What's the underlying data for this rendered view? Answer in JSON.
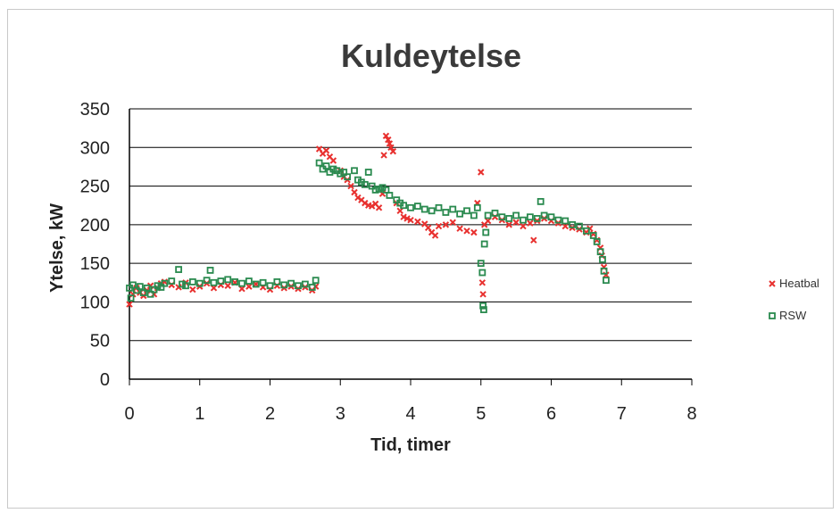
{
  "chart_data": {
    "type": "scatter",
    "title": "Kuldeytelse",
    "xlabel": "Tid, timer",
    "ylabel": "Ytelse, kW",
    "xlim": [
      0,
      8
    ],
    "ylim": [
      0,
      350
    ],
    "xticks": [
      "0",
      "1",
      "2",
      "3",
      "4",
      "5",
      "6",
      "7",
      "8"
    ],
    "yticks": [
      "0",
      "50",
      "100",
      "150",
      "200",
      "250",
      "300",
      "350"
    ],
    "grid": "horizontal",
    "legend_position": "right",
    "series": [
      {
        "name": "Heatbal",
        "color": "#e8312f",
        "marker": "x",
        "points": [
          [
            0.0,
            97
          ],
          [
            0.05,
            110
          ],
          [
            0.1,
            118
          ],
          [
            0.15,
            112
          ],
          [
            0.2,
            108
          ],
          [
            0.25,
            115
          ],
          [
            0.3,
            121
          ],
          [
            0.35,
            110
          ],
          [
            0.4,
            118
          ],
          [
            0.45,
            124
          ],
          [
            0.5,
            126
          ],
          [
            0.6,
            122
          ],
          [
            0.7,
            119
          ],
          [
            0.8,
            125
          ],
          [
            0.9,
            116
          ],
          [
            1.0,
            120
          ],
          [
            1.1,
            124
          ],
          [
            1.2,
            118
          ],
          [
            1.3,
            122
          ],
          [
            1.4,
            121
          ],
          [
            1.5,
            125
          ],
          [
            1.6,
            117
          ],
          [
            1.7,
            120
          ],
          [
            1.8,
            123
          ],
          [
            1.9,
            119
          ],
          [
            2.0,
            116
          ],
          [
            2.1,
            121
          ],
          [
            2.2,
            118
          ],
          [
            2.3,
            120
          ],
          [
            2.4,
            117
          ],
          [
            2.5,
            119
          ],
          [
            2.6,
            115
          ],
          [
            2.65,
            120
          ],
          [
            2.7,
            298
          ],
          [
            2.75,
            292
          ],
          [
            2.8,
            296
          ],
          [
            2.85,
            288
          ],
          [
            2.9,
            283
          ],
          [
            3.0,
            270
          ],
          [
            3.05,
            262
          ],
          [
            3.1,
            258
          ],
          [
            3.15,
            250
          ],
          [
            3.2,
            242
          ],
          [
            3.25,
            235
          ],
          [
            3.3,
            232
          ],
          [
            3.35,
            228
          ],
          [
            3.4,
            225
          ],
          [
            3.45,
            224
          ],
          [
            3.5,
            227
          ],
          [
            3.55,
            222
          ],
          [
            3.6,
            240
          ],
          [
            3.62,
            290
          ],
          [
            3.65,
            315
          ],
          [
            3.68,
            310
          ],
          [
            3.7,
            305
          ],
          [
            3.72,
            300
          ],
          [
            3.75,
            295
          ],
          [
            3.8,
            228
          ],
          [
            3.85,
            218
          ],
          [
            3.9,
            210
          ],
          [
            3.95,
            208
          ],
          [
            4.0,
            206
          ],
          [
            4.1,
            204
          ],
          [
            4.2,
            201
          ],
          [
            4.25,
            196
          ],
          [
            4.3,
            190
          ],
          [
            4.35,
            186
          ],
          [
            4.4,
            198
          ],
          [
            4.5,
            200
          ],
          [
            4.6,
            203
          ],
          [
            4.7,
            195
          ],
          [
            4.8,
            192
          ],
          [
            4.9,
            190
          ],
          [
            4.95,
            228
          ],
          [
            5.0,
            268
          ],
          [
            5.02,
            125
          ],
          [
            5.03,
            110
          ],
          [
            5.05,
            200
          ],
          [
            5.1,
            205
          ],
          [
            5.2,
            210
          ],
          [
            5.3,
            206
          ],
          [
            5.4,
            200
          ],
          [
            5.5,
            203
          ],
          [
            5.6,
            198
          ],
          [
            5.7,
            202
          ],
          [
            5.75,
            180
          ],
          [
            5.8,
            205
          ],
          [
            5.9,
            208
          ],
          [
            6.0,
            205
          ],
          [
            6.1,
            202
          ],
          [
            6.2,
            198
          ],
          [
            6.3,
            196
          ],
          [
            6.4,
            194
          ],
          [
            6.5,
            190
          ],
          [
            6.55,
            195
          ],
          [
            6.6,
            188
          ],
          [
            6.65,
            180
          ],
          [
            6.7,
            170
          ],
          [
            6.72,
            160
          ],
          [
            6.75,
            145
          ],
          [
            6.78,
            135
          ]
        ]
      },
      {
        "name": "RSW",
        "color": "#2a8a4f",
        "marker": "square",
        "points": [
          [
            0.0,
            118
          ],
          [
            0.02,
            105
          ],
          [
            0.05,
            122
          ],
          [
            0.1,
            115
          ],
          [
            0.15,
            120
          ],
          [
            0.2,
            112
          ],
          [
            0.25,
            118
          ],
          [
            0.3,
            110
          ],
          [
            0.35,
            116
          ],
          [
            0.4,
            121
          ],
          [
            0.45,
            119
          ],
          [
            0.5,
            124
          ],
          [
            0.6,
            127
          ],
          [
            0.7,
            142
          ],
          [
            0.75,
            123
          ],
          [
            0.8,
            121
          ],
          [
            0.9,
            126
          ],
          [
            1.0,
            124
          ],
          [
            1.1,
            128
          ],
          [
            1.15,
            141
          ],
          [
            1.2,
            125
          ],
          [
            1.3,
            127
          ],
          [
            1.4,
            129
          ],
          [
            1.5,
            126
          ],
          [
            1.6,
            124
          ],
          [
            1.7,
            127
          ],
          [
            1.8,
            123
          ],
          [
            1.9,
            125
          ],
          [
            2.0,
            121
          ],
          [
            2.1,
            126
          ],
          [
            2.2,
            122
          ],
          [
            2.3,
            124
          ],
          [
            2.4,
            121
          ],
          [
            2.5,
            123
          ],
          [
            2.6,
            119
          ],
          [
            2.65,
            128
          ],
          [
            2.7,
            280
          ],
          [
            2.75,
            272
          ],
          [
            2.8,
            276
          ],
          [
            2.85,
            268
          ],
          [
            2.9,
            272
          ],
          [
            2.95,
            270
          ],
          [
            3.0,
            266
          ],
          [
            3.05,
            268
          ],
          [
            3.1,
            262
          ],
          [
            3.2,
            270
          ],
          [
            3.25,
            258
          ],
          [
            3.3,
            255
          ],
          [
            3.35,
            252
          ],
          [
            3.4,
            268
          ],
          [
            3.45,
            250
          ],
          [
            3.5,
            245
          ],
          [
            3.55,
            246
          ],
          [
            3.6,
            248
          ],
          [
            3.65,
            245
          ],
          [
            3.7,
            238
          ],
          [
            3.8,
            232
          ],
          [
            3.85,
            228
          ],
          [
            3.9,
            225
          ],
          [
            4.0,
            222
          ],
          [
            4.1,
            224
          ],
          [
            4.2,
            220
          ],
          [
            4.3,
            218
          ],
          [
            4.4,
            222
          ],
          [
            4.5,
            216
          ],
          [
            4.6,
            220
          ],
          [
            4.7,
            214
          ],
          [
            4.8,
            218
          ],
          [
            4.9,
            212
          ],
          [
            4.95,
            222
          ],
          [
            5.0,
            150
          ],
          [
            5.02,
            138
          ],
          [
            5.03,
            95
          ],
          [
            5.04,
            90
          ],
          [
            5.05,
            175
          ],
          [
            5.07,
            190
          ],
          [
            5.1,
            212
          ],
          [
            5.2,
            215
          ],
          [
            5.3,
            210
          ],
          [
            5.4,
            208
          ],
          [
            5.5,
            212
          ],
          [
            5.6,
            206
          ],
          [
            5.7,
            210
          ],
          [
            5.8,
            208
          ],
          [
            5.85,
            230
          ],
          [
            5.9,
            212
          ],
          [
            6.0,
            210
          ],
          [
            6.1,
            206
          ],
          [
            6.2,
            205
          ],
          [
            6.3,
            200
          ],
          [
            6.4,
            198
          ],
          [
            6.5,
            192
          ],
          [
            6.6,
            186
          ],
          [
            6.65,
            178
          ],
          [
            6.7,
            165
          ],
          [
            6.73,
            155
          ],
          [
            6.75,
            140
          ],
          [
            6.78,
            128
          ]
        ]
      }
    ]
  }
}
